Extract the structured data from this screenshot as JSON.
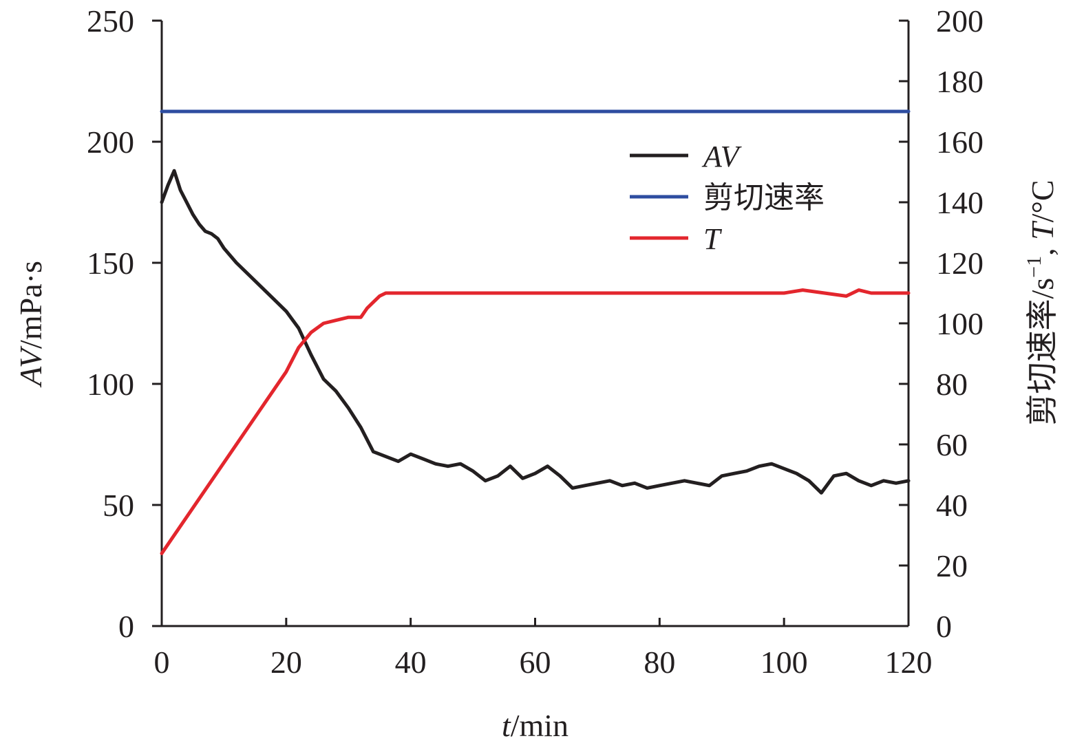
{
  "chart_data": {
    "type": "line",
    "xlabel": {
      "var": "t",
      "unit": "/min"
    },
    "ylabel_left": {
      "var": "AV",
      "unit": "/mPa·s"
    },
    "ylabel_right": {
      "prefix": "剪切速率/s",
      "sup": "−1",
      "sep": ", ",
      "var": "T",
      "unit": "/°C"
    },
    "xlim": [
      0,
      120
    ],
    "ylim_left": [
      0,
      250
    ],
    "ylim_right": [
      0,
      200
    ],
    "x_ticks": [
      "0",
      "20",
      "40",
      "60",
      "80",
      "100",
      "120"
    ],
    "y_left_ticks": [
      "0",
      "50",
      "100",
      "150",
      "200",
      "250"
    ],
    "y_right_ticks": [
      "0",
      "20",
      "40",
      "60",
      "80",
      "100",
      "120",
      "140",
      "160",
      "180",
      "200"
    ],
    "grid": false,
    "legend_position": "upper-right",
    "series": [
      {
        "name": "AV",
        "axis": "left",
        "color": "#231f20",
        "x": [
          0,
          1,
          2,
          3,
          4,
          5,
          6,
          7,
          8,
          9,
          10,
          12,
          14,
          16,
          18,
          20,
          22,
          24,
          26,
          28,
          30,
          32,
          34,
          36,
          38,
          40,
          42,
          44,
          46,
          48,
          50,
          52,
          54,
          56,
          58,
          60,
          62,
          64,
          66,
          68,
          70,
          72,
          74,
          76,
          78,
          80,
          82,
          84,
          86,
          88,
          90,
          92,
          94,
          96,
          98,
          100,
          102,
          104,
          106,
          108,
          110,
          112,
          114,
          116,
          118,
          120
        ],
        "values": [
          175,
          182,
          188,
          180,
          175,
          170,
          166,
          163,
          162,
          160,
          156,
          150,
          145,
          140,
          135,
          130,
          123,
          112,
          102,
          97,
          90,
          82,
          72,
          70,
          68,
          71,
          69,
          67,
          66,
          67,
          64,
          60,
          62,
          66,
          61,
          63,
          66,
          62,
          57,
          58,
          59,
          60,
          58,
          59,
          57,
          58,
          59,
          60,
          59,
          58,
          62,
          63,
          64,
          66,
          67,
          65,
          63,
          60,
          55,
          62,
          63,
          60,
          58,
          60,
          59,
          60
        ]
      },
      {
        "name": "剪切速率",
        "axis": "right",
        "color": "#2e4da0",
        "x": [
          0,
          30,
          120
        ],
        "values": [
          170,
          170,
          170
        ]
      },
      {
        "name": "T",
        "axis": "right",
        "color": "#e3262d",
        "x": [
          0,
          20,
          22,
          24,
          26,
          28,
          30,
          32,
          33,
          34,
          35,
          36,
          40,
          60,
          80,
          100,
          103,
          110,
          112,
          114,
          120
        ],
        "values": [
          24,
          84,
          92,
          97,
          100,
          101,
          102,
          102,
          105,
          107,
          109,
          110,
          110,
          110,
          110,
          110,
          111,
          109,
          111,
          110,
          110
        ]
      }
    ]
  }
}
